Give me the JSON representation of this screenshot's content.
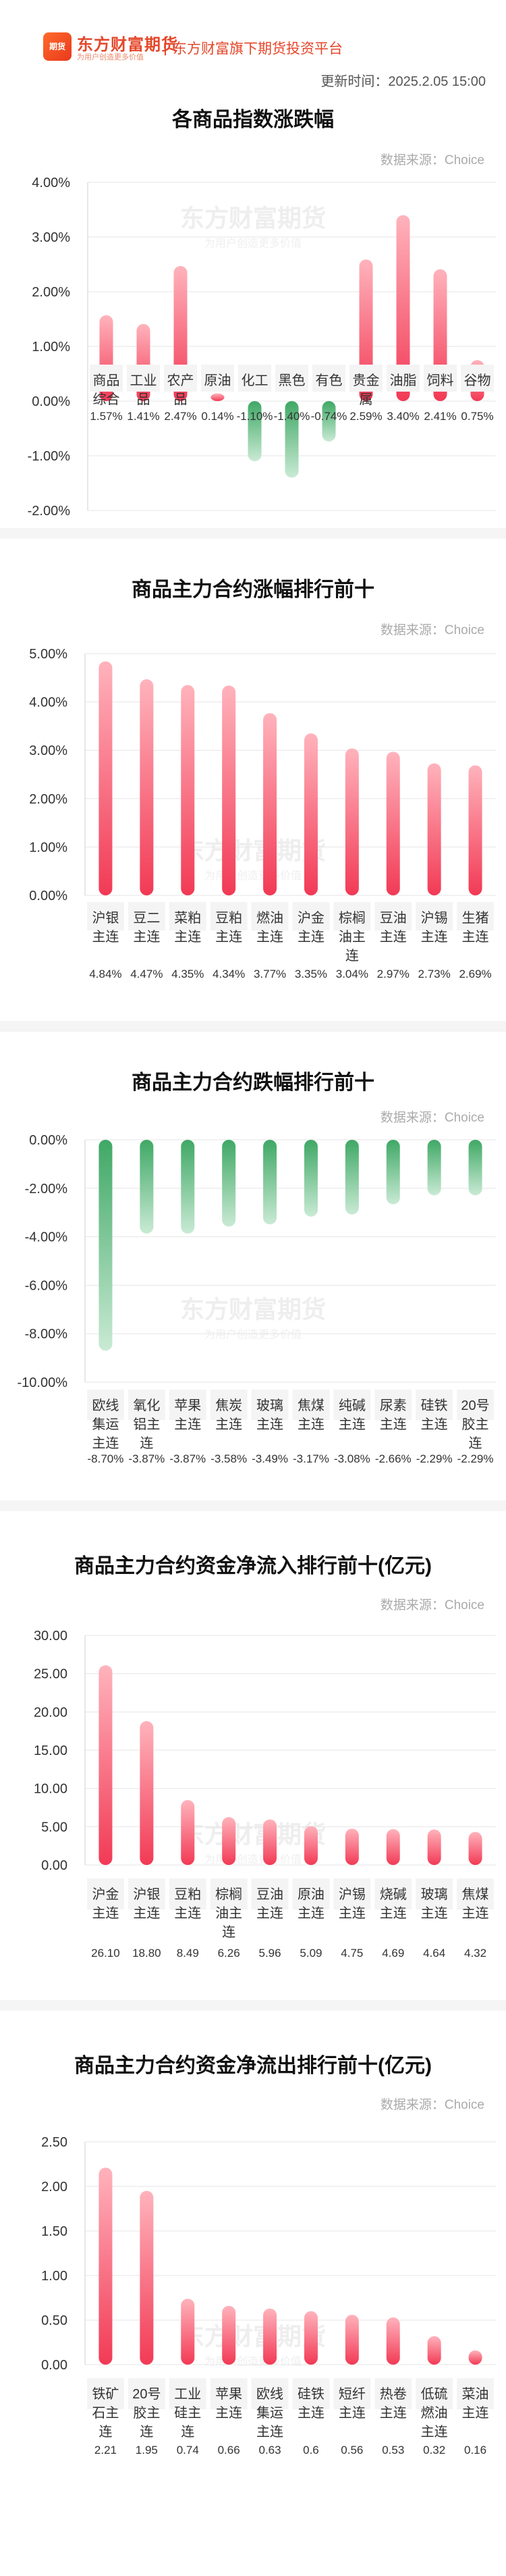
{
  "header": {
    "logo_text": "期货",
    "brand": "东方财富期货",
    "brand_sub": "为用户创造更多价值",
    "tagline": "东方财富旗下期货投资平台",
    "update_time": "更新时间：2025.2.05 15:00"
  },
  "colors": {
    "up_top": "#ffb3bc",
    "up_bottom": "#f23a55",
    "down_top": "#3fa865",
    "down_bottom": "#c9ead4",
    "label_bg": "#f4f4f4",
    "grid": "#e6e6e6"
  },
  "watermark": {
    "brand": "东方财富期货",
    "sub": "为用户创造更多价值"
  },
  "chart_data": [
    {
      "type": "bar",
      "title": "各商品指数涨跌幅",
      "source": "数据来源：Choice",
      "categories": [
        "商品\n综合",
        "工业\n品",
        "农产\n品",
        "原油",
        "化工",
        "黑色",
        "有色",
        "贵金\n属",
        "油脂",
        "饲料",
        "谷物"
      ],
      "values": [
        1.57,
        1.41,
        2.47,
        0.14,
        -1.1,
        -1.4,
        -0.74,
        2.59,
        3.4,
        2.41,
        0.75
      ],
      "value_labels": [
        "1.57%",
        "1.41%",
        "2.47%",
        "0.14%",
        "-1.10%",
        "-1.40%",
        "-0.74%",
        "2.59%",
        "3.40%",
        "2.41%",
        "0.75%"
      ],
      "yticks": [
        "4.00%",
        "3.00%",
        "2.00%",
        "1.00%",
        "0.00%",
        "-1.00%",
        "-2.00%"
      ],
      "ylim": [
        -2,
        4
      ],
      "grid": true
    },
    {
      "type": "bar",
      "title": "商品主力合约涨幅排行前十",
      "source": "数据来源：Choice",
      "categories": [
        "沪银\n主连",
        "豆二\n主连",
        "菜粕\n主连",
        "豆粕\n主连",
        "燃油\n主连",
        "沪金\n主连",
        "棕榈\n油主\n连",
        "豆油\n主连",
        "沪锡\n主连",
        "生猪\n主连"
      ],
      "values": [
        4.84,
        4.47,
        4.35,
        4.34,
        3.77,
        3.35,
        3.04,
        2.97,
        2.73,
        2.69
      ],
      "value_labels": [
        "4.84%",
        "4.47%",
        "4.35%",
        "4.34%",
        "3.77%",
        "3.35%",
        "3.04%",
        "2.97%",
        "2.73%",
        "2.69%"
      ],
      "yticks": [
        "5.00%",
        "4.00%",
        "3.00%",
        "2.00%",
        "1.00%",
        "0.00%"
      ],
      "ylim": [
        0,
        5
      ],
      "grid": true
    },
    {
      "type": "bar",
      "title": "商品主力合约跌幅排行前十",
      "source": "数据来源：Choice",
      "categories": [
        "欧线\n集运\n主连",
        "氧化\n铝主\n连",
        "苹果\n主连",
        "焦炭\n主连",
        "玻璃\n主连",
        "焦煤\n主连",
        "纯碱\n主连",
        "尿素\n主连",
        "硅铁\n主连",
        "20号\n胶主\n连"
      ],
      "values": [
        -8.7,
        -3.87,
        -3.87,
        -3.58,
        -3.49,
        -3.17,
        -3.08,
        -2.66,
        -2.29,
        -2.29
      ],
      "value_labels": [
        "-8.70%",
        "-3.87%",
        "-3.87%",
        "-3.58%",
        "-3.49%",
        "-3.17%",
        "-3.08%",
        "-2.66%",
        "-2.29%",
        "-2.29%"
      ],
      "yticks": [
        "0.00%",
        "-2.00%",
        "-4.00%",
        "-6.00%",
        "-8.00%",
        "-10.00%"
      ],
      "ylim": [
        -10,
        0
      ],
      "grid": true
    },
    {
      "type": "bar",
      "title": "商品主力合约资金净流入排行前十(亿元)",
      "source": "数据来源：Choice",
      "categories": [
        "沪金\n主连",
        "沪银\n主连",
        "豆粕\n主连",
        "棕榈\n油主\n连",
        "豆油\n主连",
        "原油\n主连",
        "沪锡\n主连",
        "烧碱\n主连",
        "玻璃\n主连",
        "焦煤\n主连"
      ],
      "values": [
        26.1,
        18.8,
        8.49,
        6.26,
        5.96,
        5.09,
        4.75,
        4.69,
        4.64,
        4.32
      ],
      "value_labels": [
        "26.10",
        "18.80",
        "8.49",
        "6.26",
        "5.96",
        "5.09",
        "4.75",
        "4.69",
        "4.64",
        "4.32"
      ],
      "yticks": [
        "30.00",
        "25.00",
        "20.00",
        "15.00",
        "10.00",
        "5.00",
        "0.00"
      ],
      "ylim": [
        0,
        30
      ],
      "grid": true
    },
    {
      "type": "bar",
      "title": "商品主力合约资金净流出排行前十(亿元)",
      "source": "数据来源：Choice",
      "categories": [
        "铁矿\n石主\n连",
        "20号\n胶主\n连",
        "工业\n硅主\n连",
        "苹果\n主连",
        "欧线\n集运\n主连",
        "硅铁\n主连",
        "短纤\n主连",
        "热卷\n主连",
        "低硫\n燃油\n主连",
        "菜油\n主连"
      ],
      "values": [
        2.21,
        1.95,
        0.74,
        0.66,
        0.63,
        0.6,
        0.56,
        0.53,
        0.32,
        0.16
      ],
      "value_labels": [
        "2.21",
        "1.95",
        "0.74",
        "0.66",
        "0.63",
        "0.6",
        "0.56",
        "0.53",
        "0.32",
        "0.16"
      ],
      "yticks": [
        "2.50",
        "2.00",
        "1.50",
        "1.00",
        "0.50",
        "0.00"
      ],
      "ylim": [
        0,
        2.5
      ],
      "grid": true
    }
  ]
}
